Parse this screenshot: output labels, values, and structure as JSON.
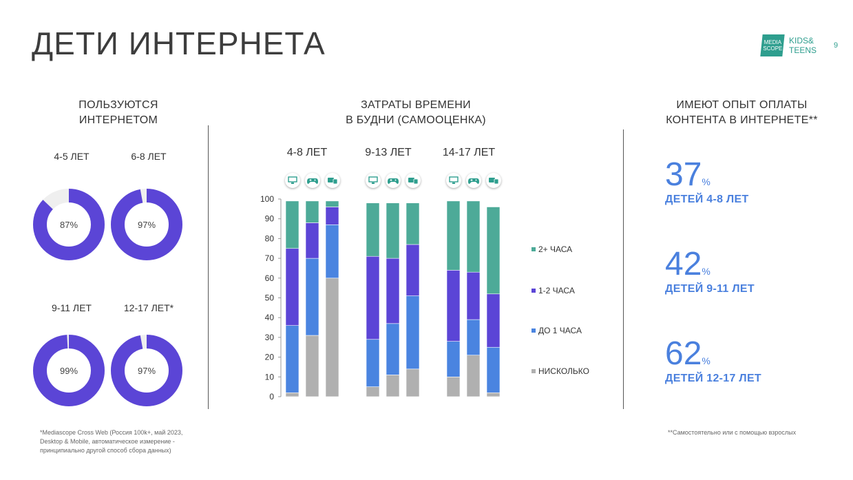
{
  "header": {
    "title": "ДЕТИ ИНТЕРНЕТА",
    "logo_text": "MEDIA SCOPE",
    "brand_line1": "KIDS&",
    "brand_line2": "TEENS",
    "page_number": "9"
  },
  "colors": {
    "two_plus": "#4daa98",
    "one_two": "#5b45d6",
    "under_one": "#4a84e0",
    "none": "#b0b0b0",
    "donut_fill": "#5b45d6",
    "donut_track": "#efefef",
    "accent_blue": "#4a80de",
    "brand_teal": "#2e9e8e"
  },
  "left": {
    "heading_line1": "ПОЛЬЗУЮТСЯ",
    "heading_line2": "ИНТЕРНЕТОМ",
    "donuts": [
      {
        "label": "4-5 ЛЕТ",
        "value": 87,
        "value_text": "87%"
      },
      {
        "label": "6-8 ЛЕТ",
        "value": 97,
        "value_text": "97%"
      },
      {
        "label": "9-11 ЛЕТ",
        "value": 99,
        "value_text": "99%"
      },
      {
        "label": "12-17 ЛЕТ*",
        "value": 97,
        "value_text": "97%"
      }
    ]
  },
  "middle": {
    "heading_line1": "ЗАТРАТЫ ВРЕМЕНИ",
    "heading_line2": "В БУДНИ (САМООЦЕНКА)",
    "groups": [
      "4-8 ЛЕТ",
      "9-13 ЛЕТ",
      "14-17 ЛЕТ"
    ],
    "icons": [
      "monitor-icon",
      "gamepad-icon",
      "devices-icon"
    ]
  },
  "chart_data": {
    "type": "bar",
    "stacked": true,
    "title": "ЗАТРАТЫ ВРЕМЕНИ В БУДНИ (САМООЦЕНКА)",
    "groups": [
      "4-8 ЛЕТ",
      "9-13 ЛЕТ",
      "14-17 ЛЕТ"
    ],
    "devices": [
      "monitor",
      "gamepad",
      "devices"
    ],
    "ylim": [
      0,
      100
    ],
    "yticks": [
      0,
      10,
      20,
      30,
      40,
      50,
      60,
      70,
      80,
      90,
      100
    ],
    "legend_position": "right",
    "series": [
      {
        "name": "НИСКОЛЬКО",
        "key": "none",
        "values": [
          2,
          31,
          60,
          5,
          11,
          14,
          10,
          21,
          2
        ]
      },
      {
        "name": "ДО 1 ЧАСА",
        "key": "under_one",
        "values": [
          34,
          39,
          27,
          24,
          26,
          37,
          18,
          18,
          23
        ]
      },
      {
        "name": "1-2 ЧАСА",
        "key": "one_two",
        "values": [
          39,
          18,
          9,
          42,
          33,
          26,
          36,
          24,
          27
        ]
      },
      {
        "name": "2+ ЧАСА",
        "key": "two_plus",
        "values": [
          24,
          11,
          3,
          27,
          28,
          21,
          35,
          36,
          44
        ]
      }
    ],
    "legend_order": [
      "2+ ЧАСА",
      "1-2 ЧАСА",
      "ДО 1 ЧАСА",
      "НИСКОЛЬКО"
    ]
  },
  "right": {
    "heading_line1": "ИМЕЮТ ОПЫТ ОПЛАТЫ",
    "heading_line2": "КОНТЕНТА В ИНТЕРНЕТЕ**",
    "stats": [
      {
        "value": "37",
        "unit": "%",
        "label": "ДЕТЕЙ 4-8 ЛЕТ"
      },
      {
        "value": "42",
        "unit": "%",
        "label": "ДЕТЕЙ 9-11 ЛЕТ"
      },
      {
        "value": "62",
        "unit": "%",
        "label": "ДЕТЕЙ 12-17 ЛЕТ"
      }
    ]
  },
  "footer": {
    "left_note_1": "*Mediascope Cross Web (Россия 100k+, май 2023,",
    "left_note_2": "Desktop & Mobile, автоматическое измерение -",
    "left_note_3": "принципиально другой способ сбора данных)",
    "right_note": "**Самостоятельно или с помощью взрослых"
  }
}
